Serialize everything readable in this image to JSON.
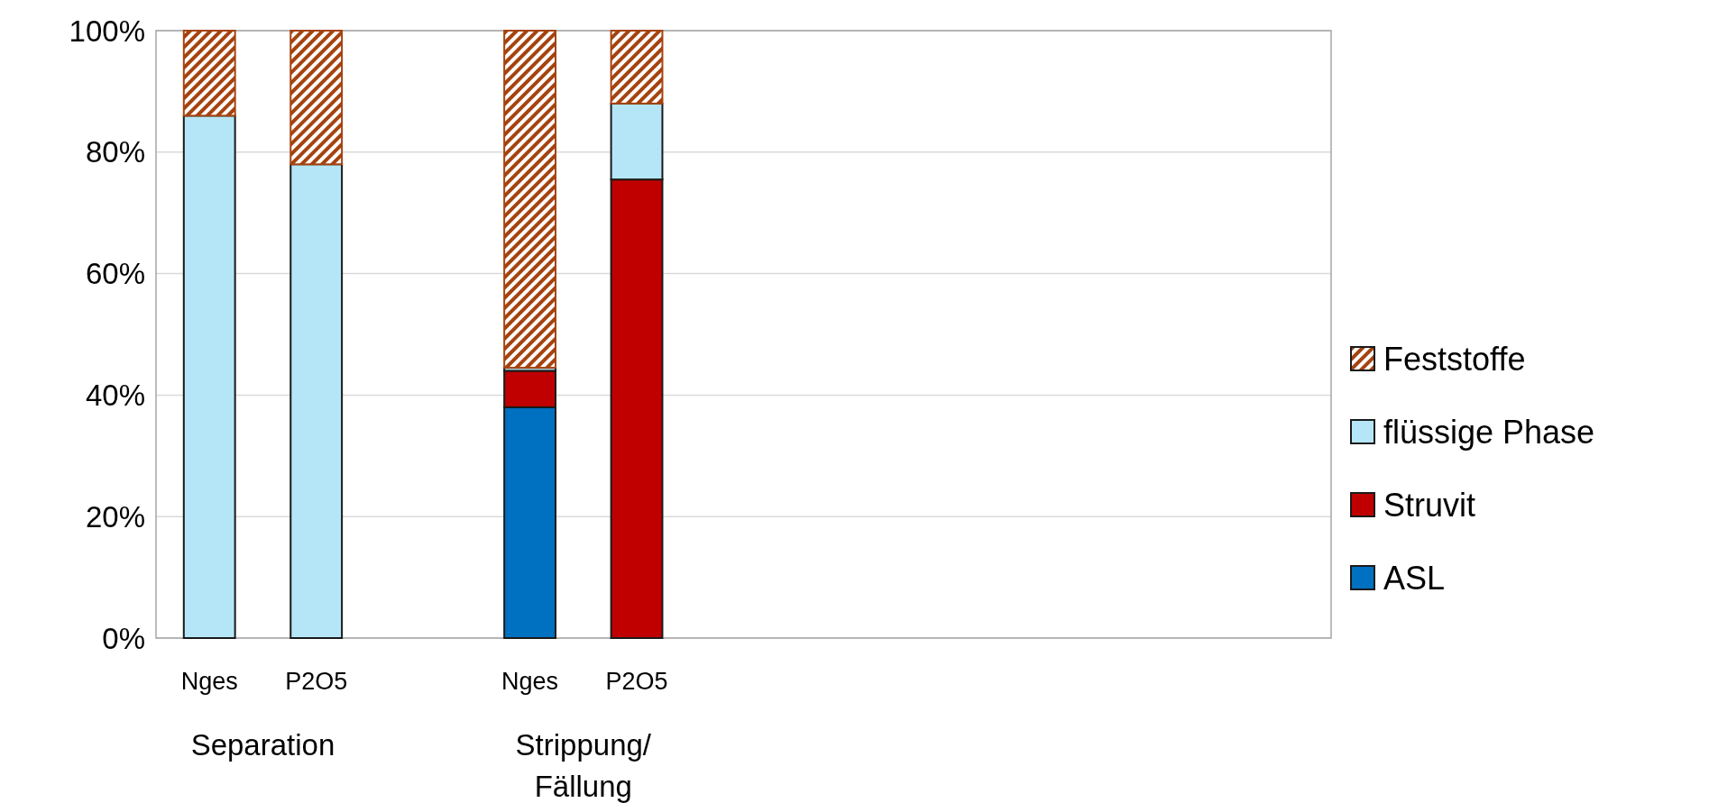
{
  "chart_data": {
    "type": "bar",
    "stacked": true,
    "categories": [
      "Nges",
      "P2O5",
      null,
      "Nges",
      "P2O5",
      null,
      null,
      null,
      null,
      null,
      null
    ],
    "series": [
      {
        "name": "ASL",
        "color": "#0070c0",
        "values": [
          0,
          0,
          null,
          38,
          0,
          null,
          null,
          null,
          null,
          null,
          null
        ]
      },
      {
        "name": "Struvit",
        "color": "#c00000",
        "values": [
          0,
          0,
          null,
          6,
          75.5,
          null,
          null,
          null,
          null,
          null,
          null
        ]
      },
      {
        "name": "flüssige Phase",
        "color": "#b4e6f8",
        "values": [
          86,
          78,
          null,
          0.5,
          12.5,
          null,
          null,
          null,
          null,
          null,
          null
        ]
      },
      {
        "name": "Feststoffe",
        "color": "#a5430f",
        "values": [
          14,
          22,
          null,
          55.5,
          12,
          null,
          null,
          null,
          null,
          null,
          null
        ]
      }
    ],
    "ylim": [
      0,
      100
    ],
    "yticks": [
      {
        "value": 0,
        "label": "0%"
      },
      {
        "value": 20,
        "label": "20%"
      },
      {
        "value": 40,
        "label": "40%"
      },
      {
        "value": 60,
        "label": "60%"
      },
      {
        "value": 80,
        "label": "80%"
      },
      {
        "value": 100,
        "label": "100%"
      }
    ],
    "grid": "y",
    "legend": "right",
    "annotations": [
      "Separation",
      "Strippung/\nFällung"
    ]
  }
}
